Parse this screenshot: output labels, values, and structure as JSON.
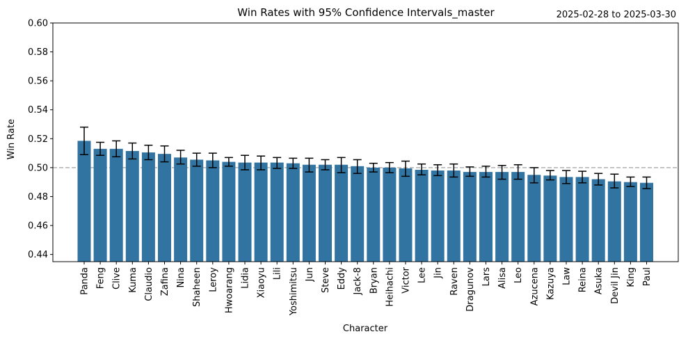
{
  "chart_data": {
    "type": "bar",
    "title": "Win Rates with 95% Confidence Intervals_master",
    "date_range": "2025-02-28 to 2025-03-30",
    "xlabel": "Character",
    "ylabel": "Win Rate",
    "ylim": [
      0.435,
      0.6
    ],
    "yticks": [
      "0.44",
      "0.46",
      "0.48",
      "0.50",
      "0.52",
      "0.54",
      "0.56",
      "0.58",
      "0.60"
    ],
    "reference_line": 0.5,
    "categories": [
      "Panda",
      "Feng",
      "Clive",
      "Kuma",
      "Claudio",
      "Zafina",
      "Nina",
      "Shaheen",
      "Leroy",
      "Hwoarang",
      "Lidia",
      "Xiaoyu",
      "Lili",
      "Yoshimitsu",
      "Jun",
      "Steve",
      "Eddy",
      "Jack-8",
      "Bryan",
      "Heihachi",
      "Victor",
      "Lee",
      "Jin",
      "Raven",
      "Dragunov",
      "Lars",
      "Alisa",
      "Leo",
      "Azucena",
      "Kazuya",
      "Law",
      "Reina",
      "Asuka",
      "Devil Jin",
      "King",
      "Paul"
    ],
    "values": [
      0.5185,
      0.513,
      0.513,
      0.5115,
      0.5105,
      0.5095,
      0.507,
      0.5055,
      0.505,
      0.504,
      0.5035,
      0.5035,
      0.5035,
      0.503,
      0.502,
      0.502,
      0.502,
      0.501,
      0.5,
      0.5,
      0.4995,
      0.4985,
      0.498,
      0.498,
      0.497,
      0.497,
      0.497,
      0.497,
      0.495,
      0.4945,
      0.4935,
      0.4935,
      0.492,
      0.4905,
      0.49,
      0.4895
    ],
    "ci_low": [
      0.509,
      0.5085,
      0.5075,
      0.506,
      0.5055,
      0.504,
      0.5025,
      0.501,
      0.5,
      0.501,
      0.4985,
      0.4985,
      0.4995,
      0.4995,
      0.497,
      0.4985,
      0.4965,
      0.496,
      0.497,
      0.4965,
      0.494,
      0.495,
      0.4945,
      0.4935,
      0.494,
      0.4935,
      0.492,
      0.492,
      0.4895,
      0.4915,
      0.489,
      0.4895,
      0.488,
      0.486,
      0.487,
      0.4855
    ],
    "ci_high": [
      0.528,
      0.5175,
      0.5185,
      0.517,
      0.5155,
      0.515,
      0.512,
      0.51,
      0.51,
      0.507,
      0.5085,
      0.508,
      0.507,
      0.5065,
      0.5065,
      0.5055,
      0.507,
      0.5055,
      0.503,
      0.5035,
      0.5045,
      0.5025,
      0.502,
      0.5025,
      0.5005,
      0.501,
      0.5015,
      0.502,
      0.5,
      0.498,
      0.498,
      0.4975,
      0.496,
      0.4955,
      0.4935,
      0.4935
    ],
    "bar_color": "#3274a1",
    "error_color": "#000000",
    "reference_line_color": "#b0b0b0",
    "grid": false,
    "legend": "none"
  }
}
